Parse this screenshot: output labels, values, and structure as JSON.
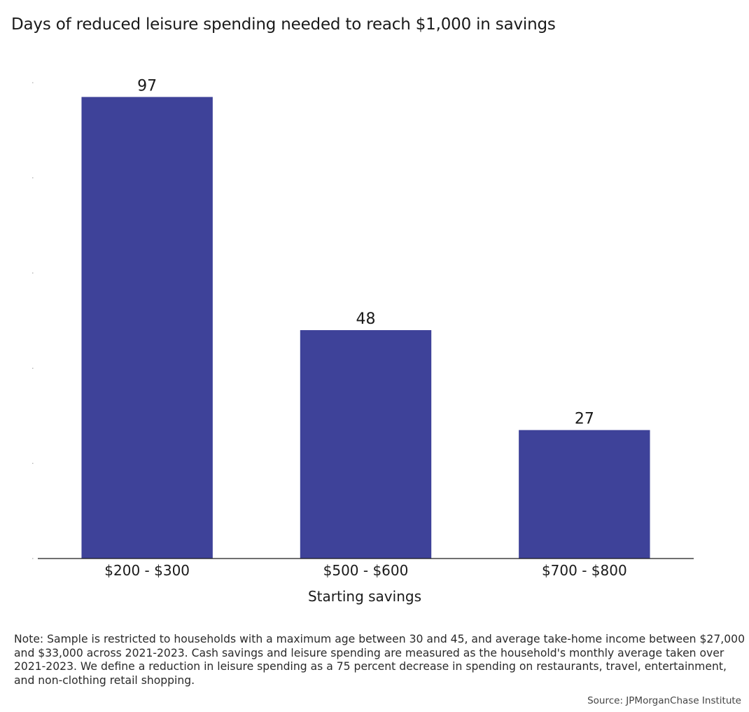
{
  "chart_data": {
    "type": "bar",
    "title": "Days of reduced leisure spending needed to reach $1,000 in savings",
    "xlabel": "Starting savings",
    "ylabel": "",
    "categories": [
      "$200 - $300",
      "$500 - $600",
      "$700 - $800"
    ],
    "values": [
      97,
      48,
      27
    ],
    "data_labels": [
      "97",
      "48",
      "27"
    ],
    "ylim": [
      0,
      100
    ],
    "grid": false,
    "legend": "none",
    "bar_color": "#3e4299"
  },
  "footer": {
    "note": "Note: Sample is restricted to households with a maximum age between 30 and 45, and average take-home income between $27,000 and $33,000 across 2021-2023. Cash savings and leisure spending are measured as the household's monthly average taken over 2021-2023. We define a reduction in leisure spending as a 75 percent decrease in spending on restaurants, travel, entertainment, and non-clothing retail shopping.",
    "source": "Source: JPMorganChase Institute"
  }
}
